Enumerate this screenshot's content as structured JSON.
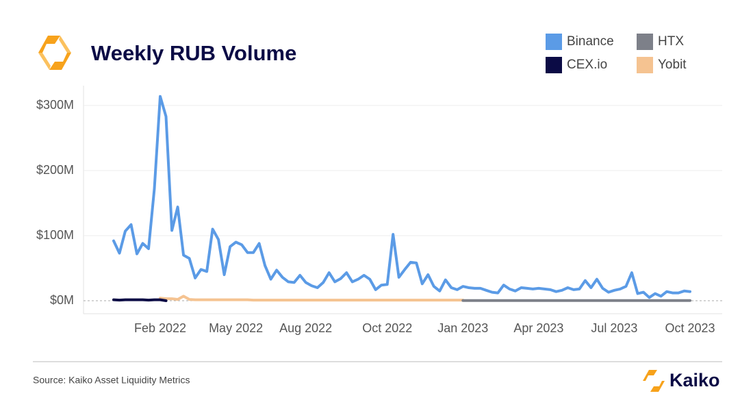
{
  "brand": "Kaiko",
  "chart_data": {
    "type": "line",
    "title": "Weekly RUB Volume",
    "source": "Source: Kaiko Asset Liquidity Metrics",
    "categories": [
      null,
      null,
      null,
      null,
      null,
      null,
      null,
      null,
      "Feb 2022",
      null,
      null,
      null,
      null,
      null,
      null,
      null,
      null,
      null,
      null,
      null,
      null,
      "May 2022",
      null,
      null,
      null,
      null,
      null,
      null,
      null,
      null,
      null,
      null,
      null,
      "Aug 2022",
      null,
      null,
      null,
      null,
      null,
      null,
      null,
      null,
      null,
      null,
      null,
      null,
      null,
      "Oct 2022",
      null,
      null,
      null,
      null,
      null,
      null,
      null,
      null,
      null,
      null,
      null,
      null,
      "Jan 2023",
      null,
      null,
      null,
      null,
      null,
      null,
      null,
      null,
      null,
      null,
      null,
      null,
      "Apr 2023",
      null,
      null,
      null,
      null,
      null,
      null,
      null,
      null,
      null,
      null,
      null,
      null,
      "Jul 2023",
      null,
      null,
      null,
      null,
      null,
      null,
      null,
      null,
      null,
      null,
      null,
      null,
      "Oct 2023"
    ],
    "series": [
      {
        "name": "Binance",
        "color": "#5b9be6",
        "values": [
          92,
          73,
          107,
          117,
          72,
          88,
          80,
          172,
          314,
          283,
          108,
          144,
          70,
          65,
          35,
          48,
          45,
          110,
          94,
          40,
          83,
          90,
          86,
          74,
          74,
          88,
          54,
          33,
          47,
          36,
          29,
          28,
          39,
          28,
          23,
          20,
          28,
          43,
          29,
          34,
          43,
          29,
          33,
          39,
          33,
          17,
          24,
          25,
          102,
          36,
          48,
          59,
          58,
          26,
          40,
          22,
          15,
          32,
          20,
          17,
          22,
          20,
          19,
          19,
          16,
          13,
          12,
          24,
          18,
          15,
          20,
          19,
          18,
          19,
          18,
          17,
          14,
          16,
          20,
          17,
          18,
          31,
          20,
          33,
          19,
          13,
          16,
          18,
          22,
          43,
          11,
          13,
          5,
          11,
          7,
          14,
          12,
          12,
          15,
          14
        ]
      },
      {
        "name": "HTX",
        "color": "#7d8089",
        "values": [
          null,
          null,
          null,
          null,
          null,
          null,
          null,
          null,
          null,
          null,
          null,
          null,
          null,
          null,
          null,
          null,
          null,
          null,
          null,
          null,
          null,
          null,
          null,
          null,
          null,
          null,
          null,
          null,
          null,
          null,
          null,
          null,
          null,
          null,
          null,
          null,
          null,
          null,
          null,
          null,
          null,
          null,
          null,
          null,
          null,
          null,
          null,
          null,
          null,
          null,
          null,
          null,
          null,
          null,
          null,
          null,
          null,
          null,
          null,
          null,
          0.3,
          0.3,
          0.3,
          0.3,
          0.3,
          0.3,
          0.3,
          0.3,
          0.3,
          0.3,
          0.3,
          0.3,
          0.3,
          0.3,
          0.3,
          0.3,
          0.3,
          0.3,
          0.3,
          0.3,
          0.3,
          0.3,
          0.3,
          0.3,
          0.3,
          0.3,
          0.3,
          0.3,
          0.3,
          0.3,
          0.3,
          0.3,
          0.3,
          0.3,
          0.3,
          0.3,
          0.3,
          0.3,
          0.3,
          0.3
        ]
      },
      {
        "name": "CEX.io",
        "color": "#0b0b45",
        "values": [
          1.5,
          1,
          1.5,
          1.5,
          1.5,
          1.5,
          1,
          1.5,
          1.5,
          0,
          null,
          null,
          null,
          null,
          null,
          null,
          null,
          null,
          null,
          null,
          null,
          null,
          null,
          null,
          null,
          null,
          null,
          null,
          null,
          null,
          null,
          null,
          null,
          null,
          null,
          null,
          null,
          null,
          null,
          null,
          null,
          null,
          null,
          null,
          null,
          null,
          null,
          null,
          null,
          null,
          null,
          null,
          null,
          null,
          null,
          null,
          null,
          null,
          null,
          null,
          null,
          null,
          null,
          null,
          null,
          null,
          null,
          null,
          null,
          null,
          null,
          null,
          null,
          null,
          null,
          null,
          null,
          null,
          null,
          null,
          null,
          null,
          null,
          null,
          null,
          null,
          null,
          null,
          null,
          null,
          null,
          null,
          null,
          null,
          null,
          null,
          null,
          null,
          null,
          null
        ]
      },
      {
        "name": "Yobit",
        "color": "#f5c391",
        "values": [
          null,
          null,
          null,
          null,
          null,
          null,
          null,
          null,
          4,
          3,
          3,
          2,
          7,
          2,
          1.5,
          1.5,
          1.5,
          1.5,
          1.5,
          1.5,
          1.5,
          1.5,
          1.5,
          1.5,
          1,
          1,
          1,
          1,
          1,
          1,
          1,
          1,
          1,
          1,
          1,
          1,
          1,
          1,
          1,
          1,
          1,
          1,
          1,
          1,
          1,
          1,
          1,
          1,
          1,
          1,
          1,
          1,
          1,
          1,
          1,
          1,
          1,
          1,
          1,
          1,
          1,
          null,
          null,
          null,
          null,
          null,
          null,
          null,
          null,
          null,
          null,
          null,
          null,
          null,
          null,
          null,
          null,
          null,
          null,
          null,
          null,
          null,
          null,
          null,
          null,
          null,
          null,
          null,
          null,
          null,
          null,
          null,
          null,
          null,
          null,
          null,
          null,
          null,
          null,
          null
        ]
      }
    ],
    "ylim": [
      -20,
      330
    ],
    "yticks": [
      {
        "value": 0,
        "label": "$0M"
      },
      {
        "value": 100,
        "label": "$100M"
      },
      {
        "value": 200,
        "label": "$200M"
      },
      {
        "value": 300,
        "label": "$300M"
      }
    ],
    "grid": true,
    "legend": "top-right"
  }
}
